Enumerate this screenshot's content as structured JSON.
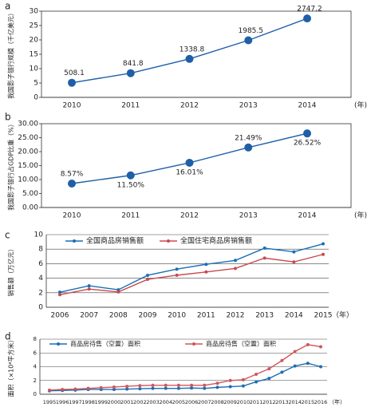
{
  "chart_data": [
    {
      "type": "line",
      "panel": "a",
      "ylabel": "我国影子银行规模（千亿美元）",
      "xunit": "(年)",
      "categories": [
        "2010",
        "2011",
        "2012",
        "2013",
        "2014"
      ],
      "values": [
        5.081,
        8.418,
        13.388,
        19.855,
        27.472
      ],
      "value_labels": [
        "508.1",
        "841.8",
        "1338.8",
        "1985.5",
        "2747.2"
      ],
      "color": "#1f5fa8",
      "ylim": [
        0,
        30
      ],
      "yticks": [
        0,
        5,
        10,
        15,
        20,
        25,
        30
      ],
      "grid": false
    },
    {
      "type": "line",
      "panel": "b",
      "ylabel": "我国影子银行占GDP比重（%）",
      "xunit": "(年)",
      "categories": [
        "2010",
        "2011",
        "2012",
        "2013",
        "2014"
      ],
      "values": [
        8.57,
        11.5,
        16.01,
        21.49,
        26.52
      ],
      "value_labels": [
        "8.57%",
        "11.50%",
        "16.01%",
        "21.49%",
        "26.52%"
      ],
      "color": "#1f5fa8",
      "ylim": [
        0,
        30
      ],
      "yticks": [
        {
          "value": 0,
          "label": "0.00"
        },
        {
          "value": 5,
          "label": "5.00"
        },
        {
          "value": 10,
          "label": "10.00"
        },
        {
          "value": 15,
          "label": "15.00"
        },
        {
          "value": 20,
          "label": "20.00"
        },
        {
          "value": 25,
          "label": "25.00"
        },
        {
          "value": 30,
          "label": "30.00"
        }
      ],
      "grid": false
    },
    {
      "type": "line",
      "panel": "c",
      "ylabel": "销售额（万亿元）",
      "xunit": "（年）",
      "categories": [
        "2006",
        "2007",
        "2008",
        "2009",
        "2010",
        "2011",
        "2012",
        "2013",
        "2014",
        "2015"
      ],
      "series": [
        {
          "name": "全国商品房销售额",
          "color": "#1a6fb5",
          "values": [
            2.07,
            2.96,
            2.41,
            4.4,
            5.25,
            5.91,
            6.45,
            8.14,
            7.63,
            8.73
          ]
        },
        {
          "name": "全国住宅商品房销售额",
          "color": "#c84a4e",
          "values": [
            1.73,
            2.51,
            2.11,
            3.84,
            4.41,
            4.86,
            5.35,
            6.77,
            6.24,
            7.28
          ]
        }
      ],
      "ylim": [
        0,
        10
      ],
      "yticks": [
        0,
        2,
        4,
        6,
        8,
        10
      ],
      "grid": true
    },
    {
      "type": "line",
      "panel": "d",
      "ylabel": "面积（×10⁸平方米）",
      "xunit": "（年）",
      "categories": [
        "1995",
        "1996",
        "1997",
        "1998",
        "1999",
        "2000",
        "2001",
        "2002",
        "2003",
        "2004",
        "2005",
        "2006",
        "2007",
        "2008",
        "2009",
        "2010",
        "2011",
        "2012",
        "2013",
        "2014",
        "2015",
        "2016"
      ],
      "series": [
        {
          "name": "商品房待售（空置）面积",
          "color": "#1f6db4",
          "values": [
            0.5,
            0.55,
            0.6,
            0.7,
            0.7,
            0.7,
            0.75,
            0.8,
            0.85,
            0.85,
            0.85,
            0.9,
            0.85,
            1.0,
            1.1,
            1.2,
            1.8,
            2.3,
            3.2,
            4.1,
            4.5,
            4.0
          ]
        },
        {
          "name": "商品房待售（空置）面积",
          "color": "#d0575a",
          "values": [
            0.6,
            0.7,
            0.75,
            0.85,
            0.95,
            1.05,
            1.15,
            1.25,
            1.3,
            1.3,
            1.3,
            1.3,
            1.3,
            1.6,
            2.0,
            2.1,
            2.9,
            3.7,
            4.9,
            6.2,
            7.2,
            6.9
          ]
        }
      ],
      "ylim": [
        0,
        8
      ],
      "yticks": [
        0,
        2,
        4,
        6,
        8
      ],
      "grid": true
    }
  ]
}
